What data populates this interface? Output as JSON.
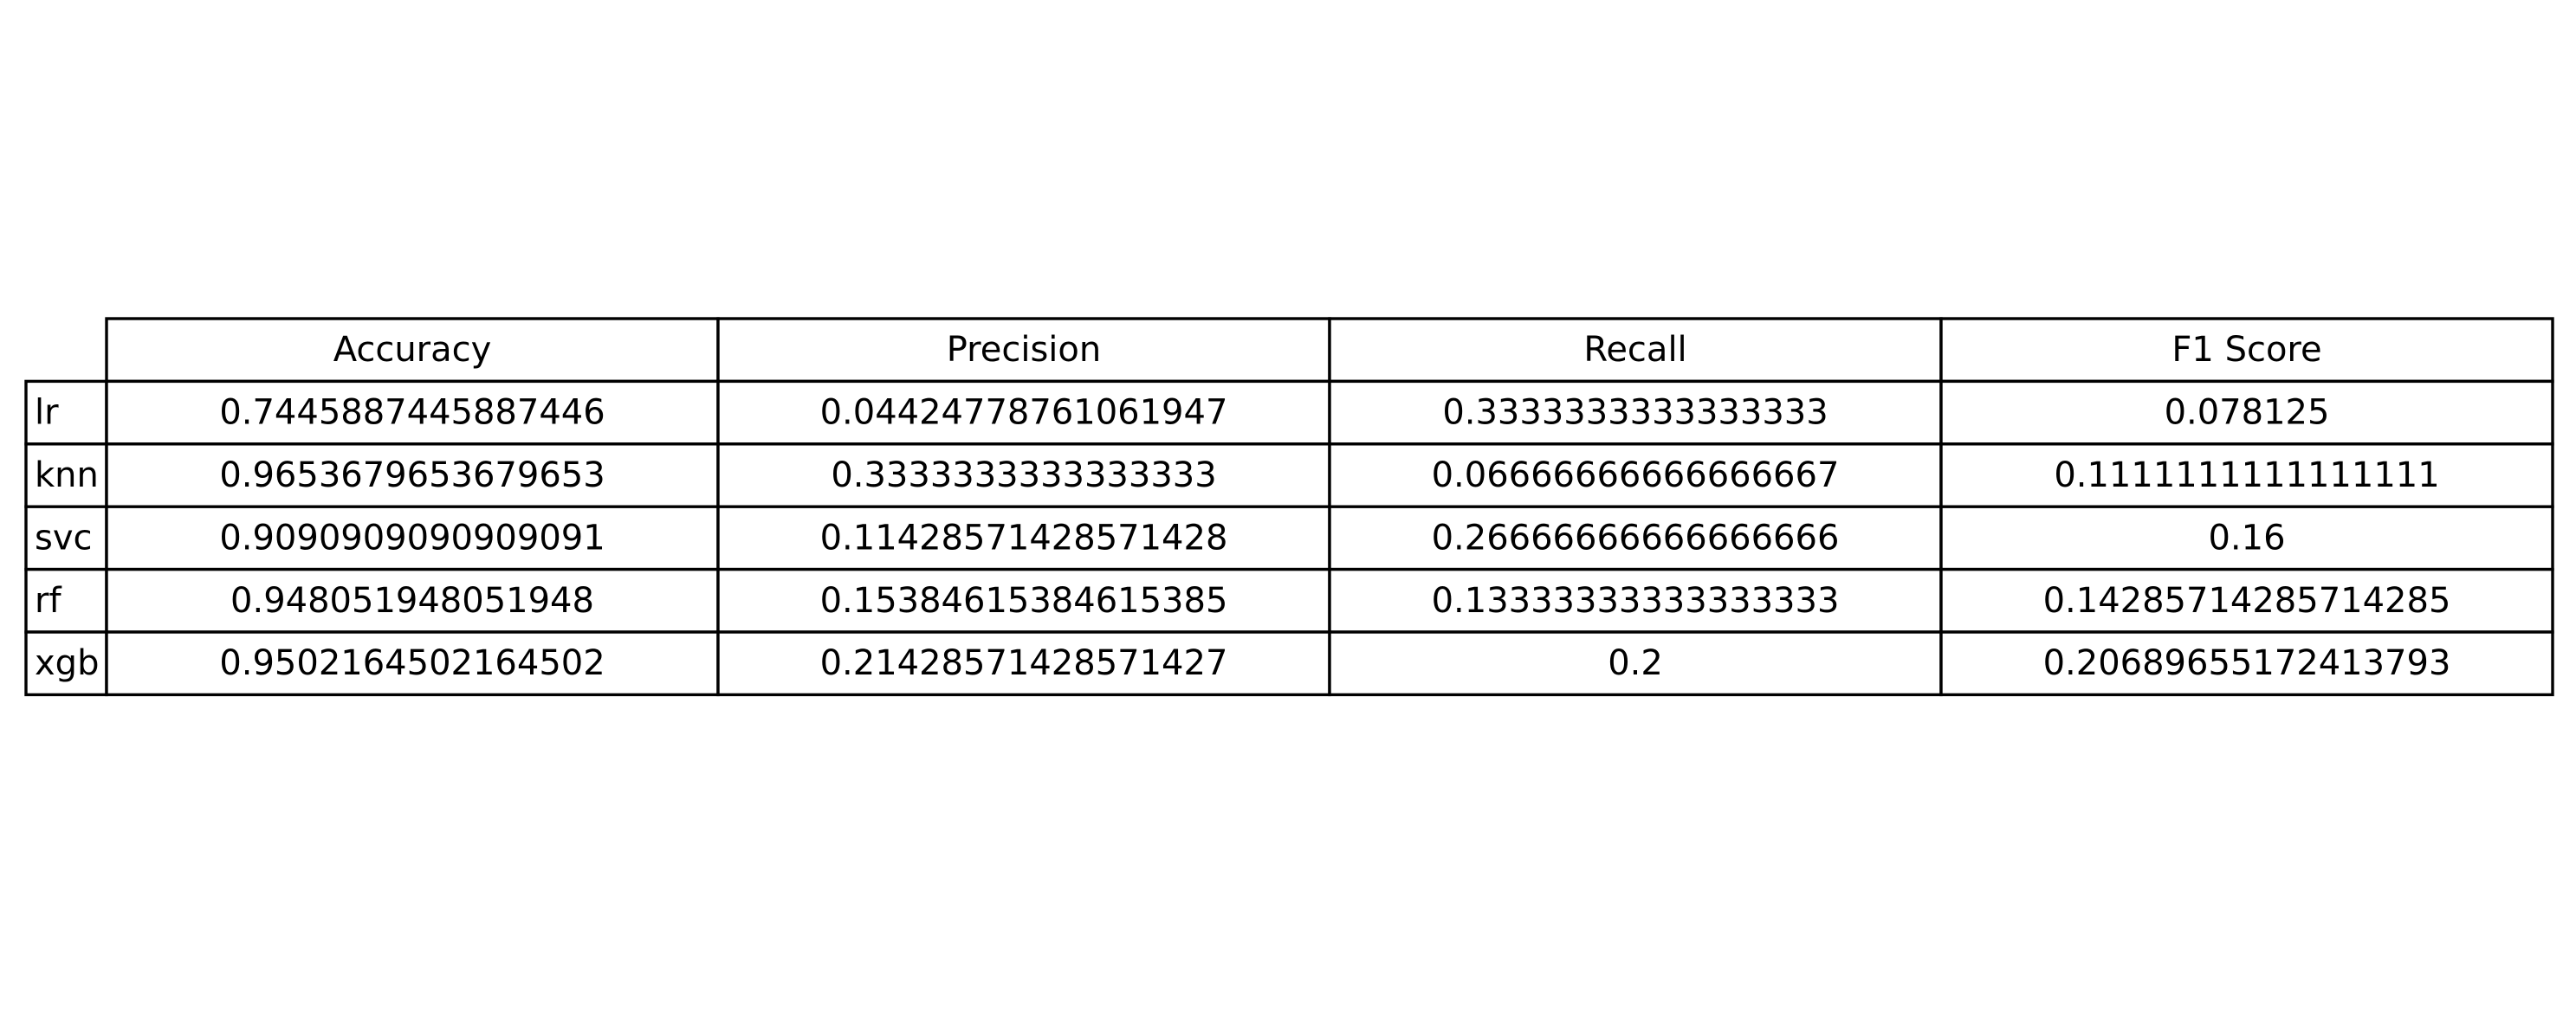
{
  "chart_data": {
    "type": "table",
    "columns": [
      "Accuracy",
      "Precision",
      "Recall",
      "F1 Score"
    ],
    "rows": [
      {
        "label": "lr",
        "values": [
          "0.7445887445887446",
          "0.04424778761061947",
          "0.3333333333333333",
          "0.078125"
        ]
      },
      {
        "label": "knn",
        "values": [
          "0.9653679653679653",
          "0.3333333333333333",
          "0.06666666666666667",
          "0.1111111111111111"
        ]
      },
      {
        "label": "svc",
        "values": [
          "0.9090909090909091",
          "0.11428571428571428",
          "0.26666666666666666",
          "0.16"
        ]
      },
      {
        "label": "rf",
        "values": [
          "0.948051948051948",
          "0.15384615384615385",
          "0.13333333333333333",
          "0.14285714285714285"
        ]
      },
      {
        "label": "xgb",
        "values": [
          "0.9502164502164502",
          "0.21428571428571427",
          "0.2",
          "0.20689655172413793"
        ]
      }
    ]
  }
}
